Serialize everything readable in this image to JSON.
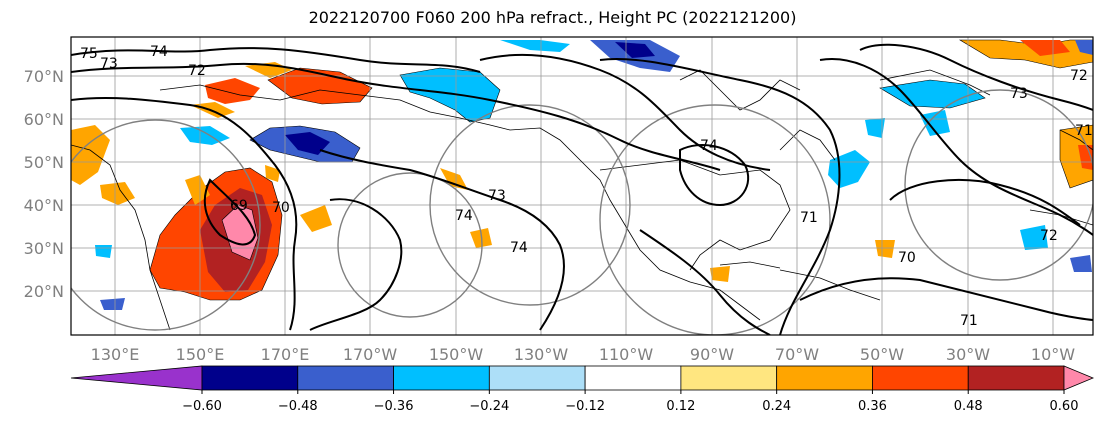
{
  "title": "2022120700 F060 200 hPa refract., Height PC (2022121200)",
  "lat_labels": [
    "70°N",
    "60°N",
    "50°N",
    "40°N",
    "30°N",
    "20°N"
  ],
  "lon_labels": [
    "130°E",
    "150°E",
    "170°E",
    "170°W",
    "150°W",
    "130°W",
    "110°W",
    "90°W",
    "70°W",
    "50°W",
    "30°W",
    "10°W"
  ],
  "colorbar": {
    "ticks": [
      "−0.60",
      "−0.48",
      "−0.36",
      "−0.24",
      "−0.12",
      "0.12",
      "0.24",
      "0.36",
      "0.48",
      "0.60"
    ],
    "colors": [
      "#9932CC",
      "#00008B",
      "#3A5FCD",
      "#00BFFF",
      "#ADDFF8",
      "#FFFFFF",
      "#FFE680",
      "#FFA500",
      "#FF4500",
      "#B22222",
      "#FF88AA"
    ]
  },
  "contour_labels": [
    "75",
    "74",
    "73",
    "72",
    "69",
    "70",
    "74",
    "74",
    "73",
    "71",
    "70",
    "71",
    "72",
    "74",
    "73",
    "71",
    "72"
  ]
}
